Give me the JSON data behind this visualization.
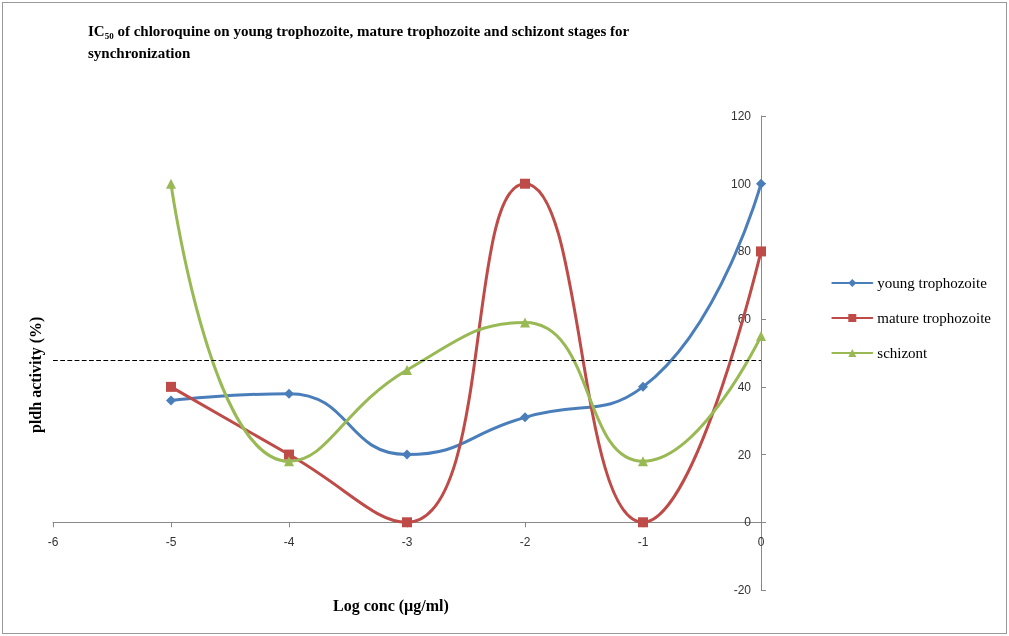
{
  "chart_data": {
    "type": "line",
    "title": "IC₅₀ of chloroquine on young trophozoite, mature trophozoite and schizont stages for\nsynchronization",
    "xlabel": "Log conc (µg/ml)",
    "ylabel": "pldh activity (%)",
    "x": [
      -5,
      -4,
      -3,
      -2,
      -1,
      0
    ],
    "series": [
      {
        "name": "young trophozoite",
        "color": "#4a7ebb",
        "marker": "diamond",
        "values": [
          36,
          38,
          20,
          31,
          40,
          100
        ]
      },
      {
        "name": "mature trophozoite",
        "color": "#be4b48",
        "marker": "square",
        "values": [
          40,
          20,
          0,
          100,
          0,
          80
        ]
      },
      {
        "name": "schizont",
        "color": "#98b954",
        "marker": "triangle",
        "values": [
          100,
          18,
          45,
          59,
          18,
          55
        ]
      }
    ],
    "xlim": [
      -6,
      0
    ],
    "xticks": [
      -6,
      -5,
      -4,
      -3,
      -2,
      -1,
      0
    ],
    "ylim": [
      -20,
      120
    ],
    "yticks": [
      -20,
      0,
      20,
      40,
      60,
      80,
      100,
      120
    ],
    "ref_lines": [
      {
        "axis": "y",
        "value": 48,
        "line_style": "dashed",
        "color": "#000000"
      }
    ],
    "grid": false,
    "legend": "right",
    "line_style": "solid"
  }
}
